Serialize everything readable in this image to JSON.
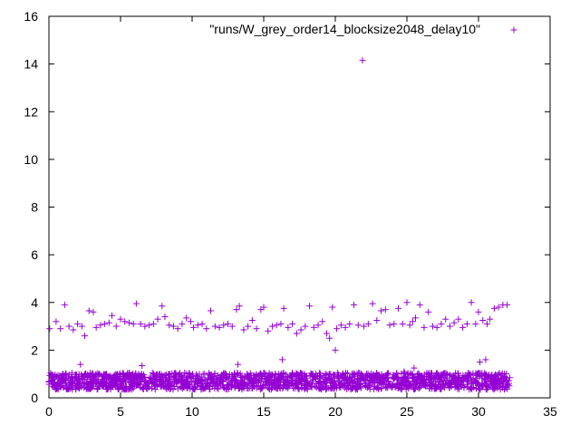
{
  "chart_data": {
    "type": "scatter",
    "title": "",
    "xlabel": "",
    "ylabel": "",
    "xlim": [
      0,
      35
    ],
    "ylim": [
      0,
      16
    ],
    "x_ticks": [
      0,
      5,
      10,
      15,
      20,
      25,
      30,
      35
    ],
    "y_ticks": [
      0,
      2,
      4,
      6,
      8,
      10,
      12,
      14,
      16
    ],
    "x_tick_labels": [
      "0",
      "5",
      "10",
      "15",
      "20",
      "25",
      "30",
      "35"
    ],
    "y_tick_labels": [
      "0",
      "2",
      "4",
      "6",
      "8",
      "10",
      "12",
      "14",
      "16"
    ],
    "grid": false,
    "legend_position": "top-right",
    "marker": "+",
    "series": [
      {
        "name": "\"runs/W_grey_order14_blocksize2048_delay10\"",
        "color": "#9400d3",
        "points": [
          [
            0.05,
            2.9
          ],
          [
            0.5,
            3.2
          ],
          [
            0.8,
            2.9
          ],
          [
            1.1,
            3.9
          ],
          [
            1.4,
            3.0
          ],
          [
            1.7,
            2.85
          ],
          [
            2.0,
            3.1
          ],
          [
            2.2,
            1.4
          ],
          [
            2.3,
            3.0
          ],
          [
            2.5,
            2.6
          ],
          [
            2.8,
            3.65
          ],
          [
            3.1,
            3.6
          ],
          [
            3.3,
            2.95
          ],
          [
            3.6,
            3.05
          ],
          [
            3.9,
            3.1
          ],
          [
            4.2,
            3.15
          ],
          [
            4.4,
            3.45
          ],
          [
            4.7,
            3.0
          ],
          [
            5.0,
            3.3
          ],
          [
            5.3,
            3.2
          ],
          [
            5.6,
            3.15
          ],
          [
            5.9,
            3.1
          ],
          [
            6.1,
            3.95
          ],
          [
            6.4,
            3.1
          ],
          [
            6.5,
            1.35
          ],
          [
            6.7,
            3.0
          ],
          [
            7.0,
            3.05
          ],
          [
            7.3,
            3.1
          ],
          [
            7.6,
            3.3
          ],
          [
            7.9,
            3.85
          ],
          [
            8.1,
            3.4
          ],
          [
            8.4,
            3.05
          ],
          [
            8.7,
            3.0
          ],
          [
            9.0,
            2.9
          ],
          [
            9.3,
            3.1
          ],
          [
            9.6,
            3.35
          ],
          [
            9.9,
            3.2
          ],
          [
            10.1,
            2.95
          ],
          [
            10.4,
            3.05
          ],
          [
            10.7,
            3.1
          ],
          [
            11.0,
            2.9
          ],
          [
            11.3,
            3.65
          ],
          [
            11.6,
            3.0
          ],
          [
            11.9,
            2.95
          ],
          [
            12.2,
            3.05
          ],
          [
            12.5,
            3.1
          ],
          [
            12.8,
            3.0
          ],
          [
            13.1,
            3.7
          ],
          [
            13.2,
            1.4
          ],
          [
            13.3,
            3.85
          ],
          [
            13.6,
            2.85
          ],
          [
            13.9,
            3.0
          ],
          [
            14.2,
            3.25
          ],
          [
            14.5,
            2.9
          ],
          [
            14.8,
            3.7
          ],
          [
            15.0,
            3.8
          ],
          [
            15.3,
            2.8
          ],
          [
            15.6,
            3.0
          ],
          [
            15.9,
            3.05
          ],
          [
            16.2,
            3.1
          ],
          [
            16.3,
            1.6
          ],
          [
            16.4,
            3.75
          ],
          [
            16.7,
            2.95
          ],
          [
            17.0,
            3.1
          ],
          [
            17.3,
            2.7
          ],
          [
            17.6,
            2.85
          ],
          [
            17.9,
            3.0
          ],
          [
            18.2,
            3.85
          ],
          [
            18.5,
            2.95
          ],
          [
            18.8,
            3.05
          ],
          [
            19.1,
            3.2
          ],
          [
            19.4,
            2.7
          ],
          [
            19.6,
            2.5
          ],
          [
            19.8,
            3.8
          ],
          [
            20.0,
            2.0
          ],
          [
            20.1,
            2.9
          ],
          [
            20.4,
            3.05
          ],
          [
            20.7,
            2.95
          ],
          [
            21.0,
            3.1
          ],
          [
            21.3,
            3.9
          ],
          [
            21.6,
            3.05
          ],
          [
            21.9,
            14.15
          ],
          [
            22.0,
            3.0
          ],
          [
            22.3,
            3.1
          ],
          [
            22.6,
            3.95
          ],
          [
            22.9,
            3.25
          ],
          [
            23.2,
            3.65
          ],
          [
            23.5,
            3.7
          ],
          [
            23.8,
            3.05
          ],
          [
            24.1,
            3.1
          ],
          [
            24.4,
            3.75
          ],
          [
            24.7,
            3.1
          ],
          [
            25.0,
            4.0
          ],
          [
            25.2,
            3.05
          ],
          [
            25.4,
            3.2
          ],
          [
            25.6,
            3.35
          ],
          [
            25.9,
            3.9
          ],
          [
            26.2,
            2.95
          ],
          [
            26.5,
            3.6
          ],
          [
            26.8,
            3.0
          ],
          [
            27.1,
            2.95
          ],
          [
            27.4,
            3.1
          ],
          [
            27.7,
            3.3
          ],
          [
            28.0,
            3.0
          ],
          [
            28.3,
            3.15
          ],
          [
            28.6,
            3.3
          ],
          [
            28.9,
            2.95
          ],
          [
            29.2,
            3.1
          ],
          [
            29.5,
            4.0
          ],
          [
            29.8,
            3.1
          ],
          [
            30.0,
            3.6
          ],
          [
            30.1,
            1.5
          ],
          [
            30.3,
            3.25
          ],
          [
            30.5,
            1.6
          ],
          [
            30.6,
            3.1
          ],
          [
            30.8,
            3.3
          ],
          [
            31.1,
            3.75
          ],
          [
            31.4,
            3.8
          ],
          [
            31.7,
            3.9
          ],
          [
            32.0,
            3.9
          ]
        ],
        "dense_band": {
          "x_range": [
            0,
            32.2
          ],
          "y_range": [
            0.35,
            1.05
          ],
          "description_value": "~0.4 to ~1.0"
        },
        "sparse_points": [
          [
            0.2,
            0.95
          ],
          [
            2.9,
            0.95
          ],
          [
            5.2,
            0.95
          ],
          [
            11.2,
            0.95
          ],
          [
            15.6,
            0.95
          ],
          [
            19.9,
            0.95
          ],
          [
            24.8,
            1.1
          ],
          [
            25.5,
            1.25
          ]
        ]
      }
    ]
  }
}
